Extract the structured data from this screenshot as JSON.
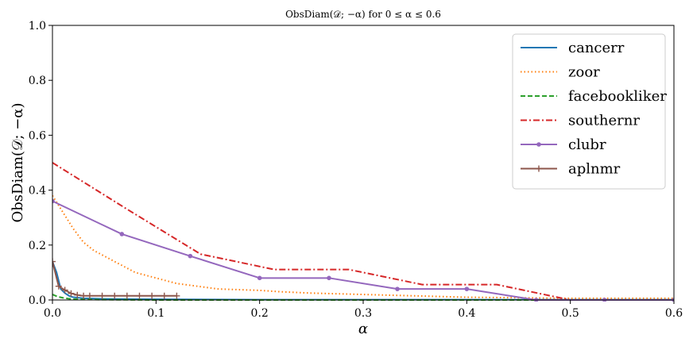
{
  "chart_data": {
    "type": "line",
    "title": "ObsDiam(𝒟; −α) for 0 ≤ α ≤ 0.6",
    "xlabel": "α",
    "ylabel": "ObsDiam(𝒟; −α)",
    "xlim": [
      0,
      0.6
    ],
    "ylim": [
      0,
      1.0
    ],
    "xticks": [
      0.0,
      0.1,
      0.2,
      0.3,
      0.4,
      0.5,
      0.6
    ],
    "xtick_labels": [
      "0.0",
      "0.1",
      "0.2",
      "0.3",
      "0.4",
      "0.5",
      "0.6"
    ],
    "yticks": [
      0.0,
      0.2,
      0.4,
      0.6,
      0.8,
      1.0
    ],
    "ytick_labels": [
      "0.0",
      "0.2",
      "0.4",
      "0.6",
      "0.8",
      "1.0"
    ],
    "grid": false,
    "legend_position": "top-right",
    "series": [
      {
        "name": "cancerr",
        "color": "#1f77b4",
        "style": "solid",
        "marker": "none",
        "x": [
          0.0,
          0.004,
          0.008,
          0.012,
          0.016,
          0.02,
          0.03,
          0.05,
          0.08,
          0.12,
          0.2,
          0.3,
          0.4,
          0.5,
          0.6
        ],
        "y": [
          0.14,
          0.1,
          0.04,
          0.025,
          0.015,
          0.01,
          0.006,
          0.004,
          0.003,
          0.002,
          0.001,
          0.001,
          0.001,
          0.001,
          0.001
        ]
      },
      {
        "name": "zoor",
        "color": "#ff7f0e",
        "style": "dotted",
        "marker": "none",
        "x": [
          0.0,
          0.01,
          0.02,
          0.03,
          0.04,
          0.06,
          0.08,
          0.1,
          0.12,
          0.14,
          0.16,
          0.2,
          0.22,
          0.25,
          0.3,
          0.35,
          0.4,
          0.45,
          0.5,
          0.6
        ],
        "y": [
          0.38,
          0.32,
          0.26,
          0.21,
          0.18,
          0.14,
          0.1,
          0.08,
          0.06,
          0.05,
          0.04,
          0.035,
          0.03,
          0.025,
          0.02,
          0.015,
          0.01,
          0.008,
          0.006,
          0.006
        ]
      },
      {
        "name": "facebookliker",
        "color": "#2ca02c",
        "style": "dashed",
        "marker": "none",
        "x": [
          0.0,
          0.005,
          0.01,
          0.015,
          0.02,
          0.03,
          0.05,
          0.1,
          0.2,
          0.3,
          0.4,
          0.5,
          0.6
        ],
        "y": [
          0.02,
          0.012,
          0.008,
          0.005,
          0.003,
          0.002,
          0.001,
          0.0,
          0.0,
          0.0,
          0.0,
          0.0,
          0.0
        ]
      },
      {
        "name": "southernr",
        "color": "#d62728",
        "style": "dashdot",
        "marker": "none",
        "x": [
          0.0,
          0.071,
          0.143,
          0.214,
          0.286,
          0.357,
          0.429,
          0.5,
          0.6
        ],
        "y": [
          0.5,
          0.333,
          0.167,
          0.111,
          0.111,
          0.056,
          0.056,
          0.0,
          0.0
        ]
      },
      {
        "name": "clubr",
        "color": "#9467bd",
        "style": "solid",
        "marker": "dot",
        "x": [
          0.0,
          0.067,
          0.133,
          0.2,
          0.267,
          0.333,
          0.4,
          0.467,
          0.533,
          0.6
        ],
        "y": [
          0.36,
          0.24,
          0.16,
          0.08,
          0.08,
          0.04,
          0.04,
          0.0,
          0.0,
          0.0
        ]
      },
      {
        "name": "aplnmr",
        "color": "#8c564b",
        "style": "solid",
        "marker": "plus",
        "x": [
          0.0,
          0.006,
          0.012,
          0.018,
          0.024,
          0.03,
          0.036,
          0.048,
          0.06,
          0.072,
          0.084,
          0.096,
          0.108,
          0.12
        ],
        "y": [
          0.14,
          0.05,
          0.036,
          0.024,
          0.018,
          0.015,
          0.015,
          0.015,
          0.015,
          0.015,
          0.015,
          0.015,
          0.015,
          0.015
        ]
      }
    ]
  }
}
